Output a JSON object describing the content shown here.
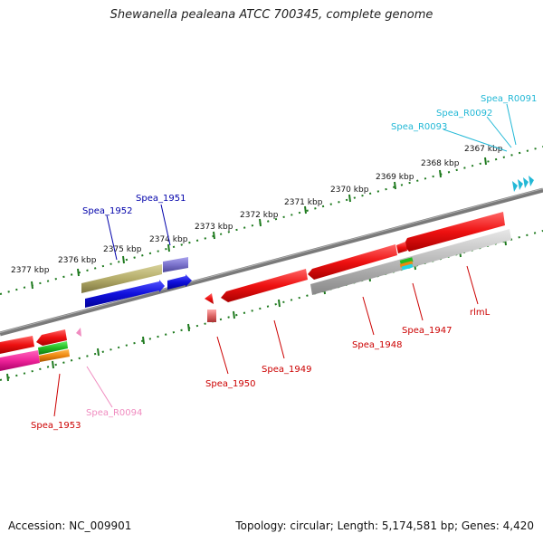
{
  "title": "Shewanella pealeana ATCC 700345, complete genome",
  "footer": {
    "accession": "Accession: NC_009901",
    "summary": "Topology: circular; Length: 5,174,581 bp; Genes: 4,420"
  },
  "kbp_ticks": [
    "2367 kbp",
    "2368 kbp",
    "2369 kbp",
    "2370 kbp",
    "2371 kbp",
    "2372 kbp",
    "2373 kbp",
    "2374 kbp",
    "2375 kbp",
    "2376 kbp",
    "2377 kbp"
  ],
  "gene_labels": [
    {
      "text": "Spea_R0091",
      "color": "#22b8d6"
    },
    {
      "text": "Spea_R0092",
      "color": "#22b8d6"
    },
    {
      "text": "Spea_R0093",
      "color": "#22b8d6"
    },
    {
      "text": "Spea_1951",
      "color": "#0000aa"
    },
    {
      "text": "Spea_1952",
      "color": "#0000aa"
    },
    {
      "text": "rlmL",
      "color": "#cc0000"
    },
    {
      "text": "Spea_1947",
      "color": "#cc0000"
    },
    {
      "text": "Spea_1948",
      "color": "#cc0000"
    },
    {
      "text": "Spea_1949",
      "color": "#cc0000"
    },
    {
      "text": "Spea_1950",
      "color": "#cc0000"
    },
    {
      "text": "Spea_1953",
      "color": "#cc0000"
    },
    {
      "text": "Spea_R0094",
      "color": "#f08cc0"
    }
  ],
  "colors": {
    "backbone": "#808080",
    "dot_track": "#1e7a1e",
    "cds_red": "#ee1111",
    "cds_blue": "#1111dd",
    "cds_olive": "#b5ad6a",
    "cds_purple": "#7b73cc",
    "cds_grey": "#b8b8b8",
    "trna_cyan": "#22b8d6",
    "trna_pink": "#f08cc0"
  }
}
